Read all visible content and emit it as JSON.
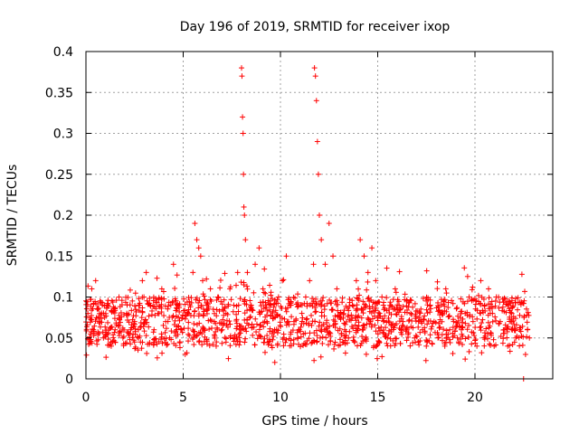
{
  "chart_data": {
    "type": "scatter",
    "title": "Day 196 of 2019, SRMTID for receiver ixop",
    "xlabel": "GPS time / hours",
    "ylabel": "SRMTID / TECUs",
    "xlim": [
      0,
      24
    ],
    "ylim": [
      0,
      0.4
    ],
    "xticks": [
      0,
      5,
      10,
      15,
      20
    ],
    "xtick_labels": [
      "0",
      "5",
      "10",
      "15",
      "20"
    ],
    "yticks": [
      0,
      0.05,
      0.1,
      0.15,
      0.2,
      0.25,
      0.3,
      0.35,
      0.4
    ],
    "ytick_labels": [
      "0",
      "0.05",
      "0.1",
      "0.15",
      "0.2",
      "0.25",
      "0.3",
      "0.35",
      "0.4"
    ],
    "grid": true,
    "marker": "plus",
    "color": "#ff0000",
    "baseline": {
      "min": 0.04,
      "max": 0.1
    },
    "series": [
      {
        "name": "SRMTID",
        "x": [
          0.1,
          0.3,
          0.5,
          0.7,
          0.9,
          1.1,
          1.3,
          1.5,
          1.7,
          1.9,
          2.1,
          2.3,
          2.5,
          2.7,
          2.9,
          3.1,
          3.3,
          3.5,
          3.7,
          3.9,
          4.1,
          4.3,
          4.5,
          4.7,
          4.9,
          5.1,
          5.3,
          5.5,
          5.6,
          5.7,
          5.8,
          5.9,
          6.0,
          6.2,
          6.4,
          6.6,
          6.8,
          7.0,
          7.2,
          7.4,
          7.6,
          7.8,
          7.9,
          8.0,
          8.02,
          8.05,
          8.08,
          8.1,
          8.12,
          8.15,
          8.2,
          8.3,
          8.5,
          8.7,
          8.9,
          9.1,
          9.3,
          9.5,
          9.7,
          9.9,
          10.1,
          10.3,
          10.5,
          10.7,
          10.9,
          11.1,
          11.3,
          11.5,
          11.7,
          11.75,
          11.8,
          11.85,
          11.9,
          11.95,
          12.0,
          12.1,
          12.3,
          12.5,
          12.7,
          12.9,
          13.1,
          13.3,
          13.5,
          13.7,
          13.9,
          14.1,
          14.3,
          14.5,
          14.7,
          14.9,
          15.1,
          15.3,
          15.5,
          15.7,
          15.9,
          16.1,
          16.3,
          16.5,
          16.7,
          16.9,
          17.1,
          17.3,
          17.5,
          17.7,
          17.9,
          18.1,
          18.3,
          18.5,
          18.7,
          18.9,
          19.1,
          19.3,
          19.5,
          19.7,
          19.9,
          20.1,
          20.3,
          20.5,
          20.7,
          20.9,
          21.1,
          21.3,
          21.5,
          21.7,
          21.9,
          22.1,
          22.3,
          22.5,
          22.7,
          22.8
        ],
        "y": [
          0.08,
          0.11,
          0.12,
          0.07,
          0.05,
          0.09,
          0.04,
          0.06,
          0.1,
          0.05,
          0.08,
          0.06,
          0.07,
          0.05,
          0.12,
          0.13,
          0.09,
          0.06,
          0.08,
          0.11,
          0.07,
          0.05,
          0.14,
          0.09,
          0.06,
          0.03,
          0.08,
          0.13,
          0.19,
          0.17,
          0.16,
          0.15,
          0.12,
          0.09,
          0.11,
          0.07,
          0.1,
          0.06,
          0.08,
          0.11,
          0.09,
          0.13,
          0.06,
          0.38,
          0.37,
          0.32,
          0.3,
          0.25,
          0.21,
          0.2,
          0.17,
          0.13,
          0.09,
          0.14,
          0.16,
          0.11,
          0.07,
          0.09,
          0.06,
          0.1,
          0.12,
          0.15,
          0.09,
          0.07,
          0.05,
          0.08,
          0.1,
          0.12,
          0.14,
          0.38,
          0.37,
          0.34,
          0.29,
          0.25,
          0.2,
          0.17,
          0.14,
          0.19,
          0.15,
          0.11,
          0.08,
          0.06,
          0.05,
          0.09,
          0.12,
          0.17,
          0.15,
          0.13,
          0.16,
          0.12,
          0.08,
          0.07,
          0.05,
          0.06,
          0.11,
          0.09,
          0.07,
          0.06,
          0.08,
          0.05,
          0.07,
          0.06,
          0.04,
          0.09,
          0.07,
          0.05,
          0.08,
          0.11,
          0.06,
          0.07,
          0.05,
          0.06,
          0.08,
          0.1,
          0.07,
          0.04,
          0.12,
          0.09,
          0.11,
          0.08,
          0.1,
          0.07,
          0.06,
          0.09,
          0.07,
          0.05,
          0.06,
          0.0,
          0.06,
          0.05
        ]
      }
    ]
  }
}
